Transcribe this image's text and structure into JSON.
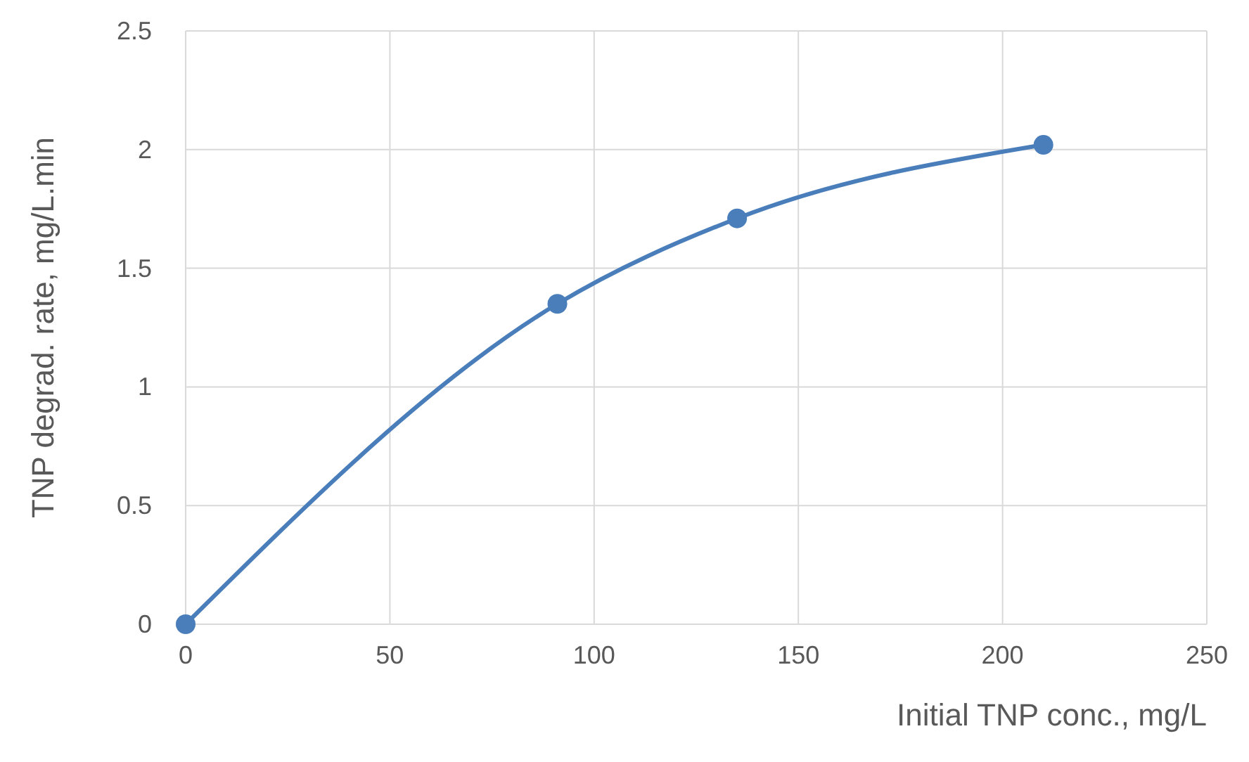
{
  "chart_data": {
    "type": "line",
    "xlabel": "Initial TNP conc., mg/L",
    "ylabel": "TNP degrad. rate, mg/L.min",
    "x": [
      0,
      91,
      135,
      210
    ],
    "series": [
      {
        "color": "#4a7ebb",
        "values": [
          0,
          1.35,
          1.71,
          2.02
        ]
      }
    ],
    "xlim": [
      0,
      250
    ],
    "xticks": [
      0,
      50,
      100,
      150,
      200,
      250
    ],
    "ylim": [
      0,
      2.5
    ],
    "yticks": [
      0,
      0.5,
      1,
      1.5,
      2,
      2.5
    ],
    "grid": true,
    "marker": "circle",
    "line_style": "solid"
  }
}
